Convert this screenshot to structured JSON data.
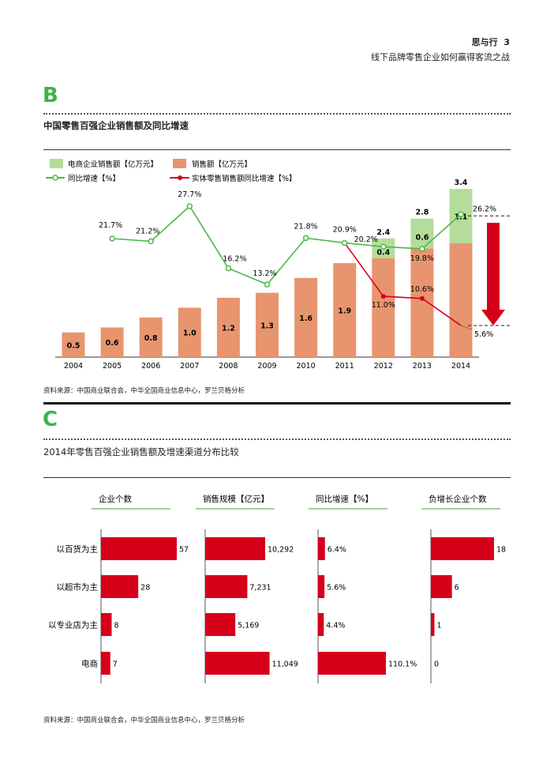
{
  "header": {
    "section": "思与行",
    "page_number": "3",
    "subtitle": "线下品牌零售企业如何赢得客流之战"
  },
  "section_b": {
    "letter": "B",
    "title": "中国零售百强企业销售额及同比增速",
    "source": "资料来源：中国商业联合会，中华全国商业信息中心，罗兰贝格分析",
    "chart_data": {
      "type": "bar+line",
      "categories": [
        "2004",
        "2005",
        "2006",
        "2007",
        "2008",
        "2009",
        "2010",
        "2011",
        "2012",
        "2013",
        "2014"
      ],
      "series": [
        {
          "name": "销售额【亿万元】",
          "kind": "stacked-bar",
          "color": "#e8956f",
          "values": [
            0.5,
            0.6,
            0.8,
            1.0,
            1.2,
            1.3,
            1.6,
            1.9,
            2.0,
            2.2,
            2.3
          ],
          "labels": [
            "0.5",
            "0.6",
            "0.8",
            "1.0",
            "1.2",
            "1.3",
            "1.6",
            "1.9",
            null,
            null,
            null
          ]
        },
        {
          "name": "电商企业销售额【亿万元】",
          "kind": "stacked-bar",
          "color": "#b5dc9b",
          "values": [
            null,
            null,
            null,
            null,
            null,
            null,
            null,
            null,
            0.4,
            0.6,
            1.1
          ],
          "labels": [
            null,
            null,
            null,
            null,
            null,
            null,
            null,
            null,
            "0.4",
            "0.6",
            "1.1"
          ]
        },
        {
          "name": "同比增速【%】",
          "kind": "line",
          "color": "#4cb848",
          "values": [
            null,
            21.7,
            21.2,
            27.7,
            16.2,
            13.2,
            21.8,
            20.9,
            20.2,
            19.8,
            26.2
          ]
        },
        {
          "name": "实体零售销售额同比增速【%】",
          "kind": "line",
          "color": "#d7001a",
          "values": [
            null,
            null,
            null,
            null,
            null,
            null,
            null,
            20.9,
            11.0,
            10.6,
            5.6
          ]
        }
      ],
      "totals": [
        null,
        null,
        null,
        null,
        null,
        null,
        null,
        null,
        "2.4",
        "2.8",
        "3.4"
      ],
      "legend_position": "top-left",
      "grid": false
    }
  },
  "section_c": {
    "letter": "C",
    "title": "2014年零售百强企业销售额及增速渠道分布比较",
    "source": "资料来源：中国商业联合会，中华全国商业信息中心，罗兰贝格分析",
    "chart_data": {
      "type": "bar",
      "orientation": "horizontal",
      "categories": [
        "以百货为主",
        "以超市为主",
        "以专业店为主",
        "电商"
      ],
      "color": "#d7001a",
      "panels": [
        {
          "title": "企业个数",
          "values": [
            57,
            28,
            8,
            7
          ],
          "labels": [
            "57",
            "28",
            "8",
            "7"
          ]
        },
        {
          "title": "销售规模【亿元】",
          "values": [
            10292,
            7231,
            5169,
            11049
          ],
          "labels": [
            "10,292",
            "7,231",
            "5,169",
            "11,049"
          ]
        },
        {
          "title": "同比增速【%】",
          "values": [
            6.4,
            5.6,
            4.4,
            110.1
          ],
          "labels": [
            "6.4%",
            "5.6%",
            "4.4%",
            "110.1%"
          ]
        },
        {
          "title": "负增长企业个数",
          "values": [
            18,
            6,
            1,
            0
          ],
          "labels": [
            "18",
            "6",
            "1",
            "0"
          ]
        }
      ]
    }
  }
}
